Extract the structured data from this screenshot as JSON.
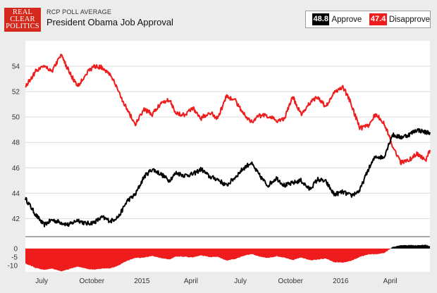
{
  "header": {
    "logo_lines": [
      "REAL",
      "CLEAR",
      "POLITICS"
    ],
    "subtitle": "RCP POLL AVERAGE",
    "title": "President Obama Job Approval"
  },
  "legend": {
    "approve_value": "48.8",
    "approve_label": "Approve",
    "disapprove_value": "47.4",
    "disapprove_label": "Disapprove"
  },
  "colors": {
    "approve": "#000000",
    "disapprove": "#ee1c1c"
  },
  "chart_data": {
    "type": "line",
    "title": "President Obama Job Approval",
    "x": [
      "2014-06-01",
      "2014-06-20",
      "2014-07-05",
      "2014-07-20",
      "2014-08-05",
      "2014-08-20",
      "2014-09-05",
      "2014-09-20",
      "2014-10-05",
      "2014-10-20",
      "2014-11-05",
      "2014-11-20",
      "2014-12-05",
      "2014-12-20",
      "2015-01-05",
      "2015-01-20",
      "2015-02-05",
      "2015-02-20",
      "2015-03-05",
      "2015-03-20",
      "2015-04-05",
      "2015-04-20",
      "2015-05-05",
      "2015-05-20",
      "2015-06-05",
      "2015-06-20",
      "2015-07-05",
      "2015-07-20",
      "2015-08-05",
      "2015-08-20",
      "2015-09-05",
      "2015-09-20",
      "2015-10-05",
      "2015-10-20",
      "2015-11-05",
      "2015-11-20",
      "2015-12-05",
      "2015-12-20",
      "2016-01-05",
      "2016-01-20",
      "2016-02-05",
      "2016-02-20",
      "2016-03-05",
      "2016-03-20",
      "2016-04-05",
      "2016-04-20",
      "2016-05-05",
      "2016-05-20",
      "2016-06-05",
      "2016-06-13"
    ],
    "series": [
      {
        "name": "Approve",
        "values": [
          43.6,
          42.3,
          41.5,
          41.9,
          41.7,
          41.5,
          41.9,
          41.6,
          41.7,
          42.1,
          41.8,
          42.2,
          43.4,
          43.9,
          45.3,
          45.9,
          45.5,
          45.0,
          45.6,
          45.4,
          45.5,
          45.9,
          45.3,
          45.1,
          44.6,
          45.2,
          45.9,
          46.4,
          45.4,
          44.6,
          45.2,
          44.6,
          44.8,
          45.0,
          44.3,
          45.1,
          44.9,
          43.9,
          44.1,
          43.8,
          44.2,
          45.8,
          46.9,
          46.8,
          48.6,
          48.4,
          48.6,
          49.0,
          48.8,
          48.8
        ]
      },
      {
        "name": "Disapprove",
        "values": [
          52.4,
          53.6,
          54.1,
          53.6,
          54.9,
          53.6,
          52.4,
          53.4,
          54.0,
          53.9,
          53.3,
          51.9,
          50.6,
          49.4,
          50.6,
          50.2,
          51.1,
          51.4,
          50.3,
          50.2,
          50.7,
          49.9,
          50.4,
          49.9,
          51.6,
          51.4,
          50.4,
          49.6,
          50.1,
          50.1,
          49.7,
          49.9,
          51.6,
          50.2,
          51.1,
          51.6,
          50.8,
          51.9,
          52.4,
          51.1,
          49.1,
          49.3,
          50.2,
          49.6,
          47.8,
          46.4,
          46.6,
          47.1,
          46.6,
          47.4
        ]
      }
    ],
    "y_ticks": [
      42,
      44,
      46,
      48,
      50,
      52,
      54
    ],
    "ylim": [
      40.8,
      56.0
    ],
    "x_tick_labels": [
      "July",
      "October",
      "2015",
      "April",
      "July",
      "October",
      "2016",
      "April"
    ],
    "spread_ticks": [
      "0",
      "-5",
      "-10"
    ],
    "spread_ylim": [
      -12,
      2
    ],
    "grid": true
  }
}
